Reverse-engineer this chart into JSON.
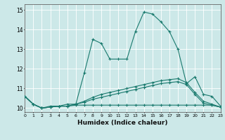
{
  "xlabel": "Humidex (Indice chaleur)",
  "xlim": [
    0,
    23
  ],
  "ylim": [
    9.8,
    15.3
  ],
  "yticks": [
    10,
    11,
    12,
    13,
    14,
    15
  ],
  "xticks": [
    0,
    1,
    2,
    3,
    4,
    5,
    6,
    7,
    8,
    9,
    10,
    11,
    12,
    13,
    14,
    15,
    16,
    17,
    18,
    19,
    20,
    21,
    22,
    23
  ],
  "bg_color": "#cce8e8",
  "grid_color": "#ffffff",
  "line_color": "#1a7a6e",
  "lines": [
    [
      10.6,
      10.2,
      10.0,
      10.1,
      10.1,
      10.2,
      10.2,
      11.8,
      13.5,
      13.3,
      12.5,
      12.5,
      12.5,
      13.9,
      14.9,
      14.8,
      14.4,
      13.9,
      13.0,
      11.25,
      11.6,
      10.7,
      10.6,
      10.1
    ],
    [
      10.6,
      10.2,
      10.0,
      10.05,
      10.1,
      10.1,
      10.15,
      10.15,
      10.15,
      10.15,
      10.15,
      10.15,
      10.15,
      10.15,
      10.15,
      10.15,
      10.15,
      10.15,
      10.15,
      10.15,
      10.15,
      10.15,
      10.15,
      10.05
    ],
    [
      10.6,
      10.2,
      10.0,
      10.05,
      10.1,
      10.1,
      10.2,
      10.3,
      10.45,
      10.55,
      10.65,
      10.75,
      10.85,
      10.95,
      11.05,
      11.15,
      11.25,
      11.3,
      11.35,
      11.2,
      10.7,
      10.25,
      10.15,
      10.05
    ],
    [
      10.6,
      10.2,
      10.0,
      10.05,
      10.1,
      10.1,
      10.2,
      10.35,
      10.55,
      10.7,
      10.8,
      10.9,
      11.0,
      11.1,
      11.2,
      11.3,
      11.4,
      11.45,
      11.5,
      11.3,
      10.8,
      10.35,
      10.2,
      10.05
    ]
  ]
}
